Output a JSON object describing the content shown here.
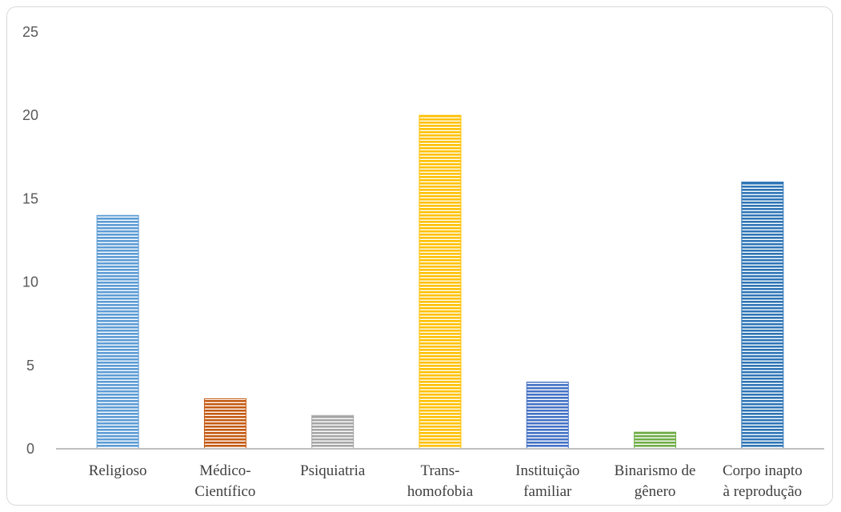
{
  "chart_data": {
    "type": "bar",
    "categories": [
      [
        "Religioso"
      ],
      [
        "Médico-",
        "Científico"
      ],
      [
        "Psiquiatria"
      ],
      [
        "Trans-",
        "homofobia"
      ],
      [
        "Instituição",
        "familiar"
      ],
      [
        "Binarismo de",
        "gênero"
      ],
      [
        "Corpo inapto",
        "à reprodução"
      ]
    ],
    "values": [
      14,
      3,
      2,
      20,
      4,
      1,
      16
    ],
    "colors": [
      "#5b9bd5",
      "#c55a11",
      "#a5a5a5",
      "#ffc000",
      "#4472c4",
      "#70ad47",
      "#2e75b6"
    ],
    "ylim": [
      0,
      25
    ],
    "yticks": [
      0,
      5,
      10,
      15,
      20,
      25
    ],
    "title": "",
    "xlabel": "",
    "ylabel": "",
    "grid": false,
    "pattern": "horizontal-stripes"
  }
}
